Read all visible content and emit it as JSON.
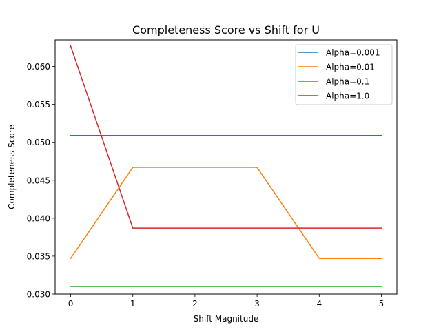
{
  "chart_data": {
    "type": "line",
    "title": "Completeness Score vs Shift for U",
    "xlabel": "Shift Magnitude",
    "ylabel": "Completeness Score",
    "x": [
      0,
      1,
      2,
      3,
      4,
      5
    ],
    "xlim": [
      -0.25,
      5.25
    ],
    "ylim": [
      0.03,
      0.0635
    ],
    "xticks": [
      0,
      1,
      2,
      3,
      4,
      5
    ],
    "yticks": [
      0.03,
      0.035,
      0.04,
      0.045,
      0.05,
      0.055,
      0.06
    ],
    "ytick_labels": [
      "0.030",
      "0.035",
      "0.040",
      "0.045",
      "0.050",
      "0.055",
      "0.060"
    ],
    "grid": false,
    "legend_position": "top-right",
    "series": [
      {
        "name": "Alpha=0.001",
        "color": "#1f77b4",
        "values": [
          0.0509,
          0.0509,
          0.0509,
          0.0509,
          0.0509,
          0.0509
        ]
      },
      {
        "name": "Alpha=0.01",
        "color": "#ff7f0e",
        "values": [
          0.0347,
          0.0467,
          0.0467,
          0.0467,
          0.0347,
          0.0347
        ]
      },
      {
        "name": "Alpha=0.1",
        "color": "#2ca02c",
        "values": [
          0.031,
          0.031,
          0.031,
          0.031,
          0.031,
          0.031
        ]
      },
      {
        "name": "Alpha=1.0",
        "color": "#d62728",
        "values": [
          0.0627,
          0.0387,
          0.0387,
          0.0387,
          0.0387,
          0.0387
        ]
      }
    ]
  }
}
